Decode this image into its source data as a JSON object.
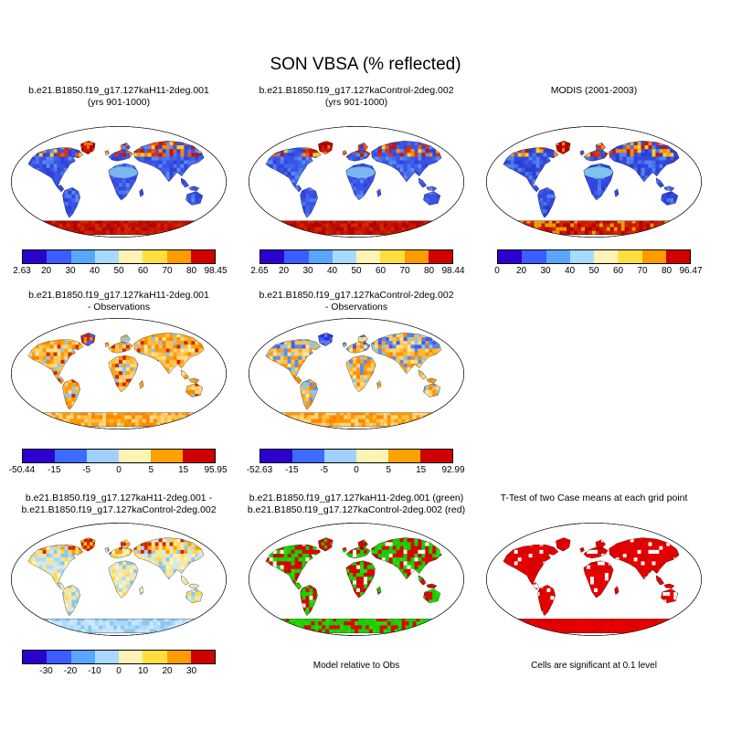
{
  "chart_data": {
    "type": "map-panel",
    "projection": "robinson",
    "title": "SON VBSA (% reflected)",
    "panels": [
      {
        "name": "case1-climatology",
        "title_lines": [
          "b.e21.B1850.f19_g17.127kaH11-2deg.001",
          "(yrs 901-1000)"
        ],
        "colorbar": {
          "colors": [
            "#2c00cf",
            "#3c5cff",
            "#58a6ff",
            "#a9d9ff",
            "#fdf3b5",
            "#ffdf3e",
            "#ff9c00",
            "#cf0000"
          ],
          "ticks": [
            "2.63",
            "20",
            "30",
            "40",
            "50",
            "60",
            "70",
            "80",
            "98.45"
          ],
          "tick_mode": "edges"
        },
        "map_style": {
          "land": "#3a53e6",
          "palette": [
            "#2e42d8",
            "#3a53e6",
            "#4166ee",
            "#3a53e6",
            "#5c8cf0",
            "#3346dd",
            "#3a53e6",
            "#4b79ee"
          ],
          "greenland": [
            "#b30000",
            "#d41800",
            "#ff7300",
            "#a50000"
          ],
          "antarctica": [
            "#c81800",
            "#b30000",
            "#d42600",
            "#bb0e00"
          ],
          "arctic": [
            "#e03000",
            "#ff8c00",
            "#ffd020",
            "#c81400",
            "#ff5500"
          ],
          "sahara": "#7ab6f0"
        }
      },
      {
        "name": "case2-climatology",
        "title_lines": [
          "b.e21.B1850.f19_g17.127kaControl-2deg.002",
          "(yrs 901-1000)"
        ],
        "colorbar": {
          "colors": [
            "#2c00cf",
            "#3c5cff",
            "#58a6ff",
            "#a9d9ff",
            "#fdf3b5",
            "#ffdf3e",
            "#ff9c00",
            "#cf0000"
          ],
          "ticks": [
            "2.65",
            "20",
            "30",
            "40",
            "50",
            "60",
            "70",
            "80",
            "98.44"
          ],
          "tick_mode": "edges"
        },
        "map_style": {
          "land": "#3a53e6",
          "palette": [
            "#2e42d8",
            "#3a53e6",
            "#4166ee",
            "#3a53e6",
            "#5c8cf0",
            "#3346dd",
            "#3a53e6",
            "#4b79ee"
          ],
          "greenland": [
            "#b30000",
            "#d41800",
            "#ff7300",
            "#a50000"
          ],
          "antarctica": [
            "#c81800",
            "#b30000",
            "#d42600",
            "#bb0e00"
          ],
          "arctic": [
            "#e03000",
            "#ff8c00",
            "#ffd020",
            "#c81400",
            "#ff5500"
          ],
          "sahara": "#7ab6f0"
        }
      },
      {
        "name": "modis-observations",
        "title_lines": [
          "MODIS (2001-2003)"
        ],
        "colorbar": {
          "colors": [
            "#2c00cf",
            "#3c5cff",
            "#58a6ff",
            "#a9d9ff",
            "#fdf3b5",
            "#ffdf3e",
            "#ff9c00",
            "#cf0000"
          ],
          "ticks": [
            "0",
            "20",
            "30",
            "40",
            "50",
            "60",
            "70",
            "80",
            "96.47"
          ],
          "tick_mode": "edges"
        },
        "map_style": {
          "land": "#3448e0",
          "palette": [
            "#2a3cd4",
            "#3448e0",
            "#3c5ce8",
            "#3448e0",
            "#5584ec",
            "#2f42da",
            "#4a74e8",
            "#3448e0"
          ],
          "greenland": [
            "#b30000",
            "#d41800",
            "#ff8c00",
            "#a50000"
          ],
          "antarctica": [
            "#c81800",
            "#d42600",
            "#b30000",
            "#e8a000"
          ],
          "arctic": [
            "#ff8c00",
            "#ffd020",
            "#e03000",
            "#ffaa00",
            "#c81400"
          ],
          "sahara": "#7cc4ea"
        }
      },
      {
        "name": "case1-minus-observations",
        "title_lines": [
          "b.e21.B1850.f19_g17.127kaH11-2deg.001",
          "- Observations"
        ],
        "colorbar": {
          "colors": [
            "#2c00cf",
            "#3c6cff",
            "#9fd0ff",
            "#fdf3b5",
            "#ffa200",
            "#cf0000"
          ],
          "ticks": [
            "-50.44",
            "-15",
            "-5",
            "0",
            "5",
            "15",
            "95.95"
          ],
          "tick_mode": "edges"
        },
        "map_style": {
          "land": "#ffaa00",
          "palette": [
            "#ff9900",
            "#ffc14d",
            "#f0a520",
            "#ffd97f",
            "#ff8400",
            "#8cc6ee",
            "#ffb830",
            "#d42600",
            "#ffcc66",
            "#f5e7a0"
          ],
          "greenland": [
            "#d42600",
            "#ff8c00",
            "#3c5cff",
            "#c81800"
          ],
          "antarctica": [
            "#ff9900",
            "#ffc14d",
            "#ff8400",
            "#ffd97f"
          ],
          "arctic": null,
          "sahara": null
        }
      },
      {
        "name": "case2-minus-observations",
        "title_lines": [
          "b.e21.B1850.f19_g17.127kaControl-2deg.002",
          "- Observations"
        ],
        "colorbar": {
          "colors": [
            "#2c00cf",
            "#3c6cff",
            "#9fd0ff",
            "#fdf3b5",
            "#ffa200",
            "#cf0000"
          ],
          "ticks": [
            "-52.63",
            "-15",
            "-5",
            "0",
            "5",
            "15",
            "92.99"
          ],
          "tick_mode": "edges"
        },
        "map_style": {
          "land": "#ffaa00",
          "palette": [
            "#ff9900",
            "#ffc14d",
            "#f0a520",
            "#ffd97f",
            "#8cc6ee",
            "#ff8400",
            "#ffb830",
            "#5c8cf0",
            "#ffcc66",
            "#f5e7a0"
          ],
          "greenland": [
            "#2c2cd0",
            "#3c5cff",
            "#2a3cd4",
            "#5584ec"
          ],
          "antarctica": [
            "#ff9900",
            "#ffc14d",
            "#ff8400",
            "#ffd97f"
          ],
          "arctic": [
            "#8cc6ee",
            "#3c5cff",
            "#ffc14d",
            "#5584ec"
          ],
          "sahara": null
        }
      },
      {
        "name": "case1-minus-case2",
        "title_lines": [
          "b.e21.B1850.f19_g17.127kaH11-2deg.001 -",
          "b.e21.B1850.f19_g17.127kaControl-2deg.002"
        ],
        "colorbar": {
          "colors": [
            "#2c00cf",
            "#3c5cff",
            "#58a6ff",
            "#a9d9ff",
            "#fdf3b5",
            "#ffdf3e",
            "#ff9c00",
            "#cf0000"
          ],
          "ticks": [
            "-30",
            "-20",
            "-10",
            "0",
            "10",
            "20",
            "30"
          ],
          "tick_mode": "interior"
        },
        "map_style": {
          "land": "#f5e7a0",
          "palette": [
            "#f5e7a0",
            "#fdf3c0",
            "#a9d9ff",
            "#f5e7a0",
            "#cde9ff",
            "#ffd84d",
            "#f5e7a0",
            "#8cc6ee"
          ],
          "greenland": [
            "#d42600",
            "#ff8c00",
            "#ffd020",
            "#c81800"
          ],
          "antarctica": [
            "#a9d9ff",
            "#cde9ff",
            "#8cc6ee",
            "#bfe2ff"
          ],
          "arctic": [
            "#ff9c00",
            "#d42600",
            "#ffd84d"
          ],
          "sahara": null
        }
      },
      {
        "name": "significance-green-red",
        "title_lines": [
          "b.e21.B1850.f19_g17.127kaH11-2deg.001 (green)",
          "b.e21.B1850.f19_g17.127kaControl-2deg.002 (red)"
        ],
        "caption": "Model relative to Obs",
        "map_style": {
          "land": "#1ecc00",
          "palette": [
            "#1ecc00",
            "#e00000",
            "#22dd08",
            "#cc0000",
            "#1ecc00",
            "#e00000",
            "#ffffff",
            "#1ecc00",
            "#d40000"
          ],
          "greenland": [
            "#e00000",
            "#1ecc00",
            "#d40000"
          ],
          "antarctica": [
            "#1ecc00",
            "#e00000",
            "#22dd08",
            "#1ecc00"
          ],
          "arctic": null,
          "sahara": null
        }
      },
      {
        "name": "t-test",
        "title_lines": [
          "T-Test of two Case means at each grid point"
        ],
        "caption": "Cells are significant at 0.1 level",
        "map_style": {
          "land": "#e80000",
          "palette": [
            "#e80000",
            "#d90000",
            "#e80000",
            "#e80000",
            "#ffffff",
            "#e80000",
            "#d90000"
          ],
          "greenland": [
            "#e80000",
            "#d90000"
          ],
          "antarctica": [
            "#e80000",
            "#d90000",
            "#e80000"
          ],
          "arctic": null,
          "sahara": null
        }
      }
    ]
  }
}
